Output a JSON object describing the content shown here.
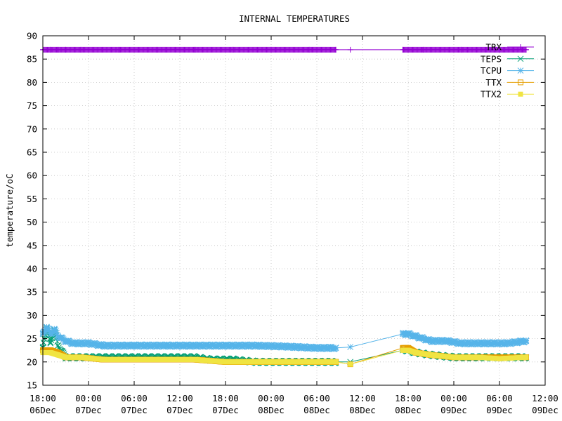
{
  "chart_data": {
    "type": "line",
    "title": "INTERNAL TEMPERATURES",
    "xlabel": "",
    "ylabel": "temperature/oC",
    "ylim": [
      15,
      90
    ],
    "yticks": [
      15,
      20,
      25,
      30,
      35,
      40,
      45,
      50,
      55,
      60,
      65,
      70,
      75,
      80,
      85,
      90
    ],
    "xlim_hours": [
      0,
      66
    ],
    "x_unit": "hours from 18:00 06Dec",
    "xticks": [
      {
        "h": 0,
        "time": "18:00",
        "date": "06Dec"
      },
      {
        "h": 6,
        "time": "00:00",
        "date": "07Dec"
      },
      {
        "h": 12,
        "time": "06:00",
        "date": "07Dec"
      },
      {
        "h": 18,
        "time": "12:00",
        "date": "07Dec"
      },
      {
        "h": 24,
        "time": "18:00",
        "date": "07Dec"
      },
      {
        "h": 30,
        "time": "00:00",
        "date": "08Dec"
      },
      {
        "h": 36,
        "time": "06:00",
        "date": "08Dec"
      },
      {
        "h": 42,
        "time": "12:00",
        "date": "08Dec"
      },
      {
        "h": 48,
        "time": "18:00",
        "date": "08Dec"
      },
      {
        "h": 54,
        "time": "00:00",
        "date": "09Dec"
      },
      {
        "h": 60,
        "time": "06:00",
        "date": "09Dec"
      },
      {
        "h": 66,
        "time": "12:00",
        "date": "09Dec"
      }
    ],
    "grid": true,
    "legend_position": "top-right",
    "series": [
      {
        "name": "TRX",
        "color": "#9400d3",
        "marker": "plus",
        "x": [
          0,
          1,
          2,
          3,
          5,
          10,
          15,
          20,
          25,
          30,
          35,
          38.5,
          40.4,
          47.3,
          48,
          50,
          55,
          60,
          63.5
        ],
        "y": [
          87,
          87,
          87,
          87,
          87,
          87,
          87,
          87,
          87,
          87,
          87,
          87,
          87,
          87,
          87,
          87,
          87,
          87,
          87
        ],
        "dense": [
          [
            0,
            38.5
          ],
          [
            47.3,
            63.5
          ]
        ]
      },
      {
        "name": "TEPS",
        "color": "#009e73",
        "marker": "x",
        "x": [
          0,
          0.5,
          1,
          1.5,
          2,
          3,
          5,
          8,
          12,
          16,
          20,
          22,
          25,
          28,
          32,
          36,
          38.5,
          40.4,
          47.3,
          48,
          49,
          51,
          54,
          57,
          60,
          63.5
        ],
        "y": [
          23,
          27.5,
          24,
          27,
          23.5,
          21,
          21,
          21,
          21,
          21,
          21,
          20.5,
          20.5,
          20,
          20,
          20,
          20,
          20,
          22.5,
          22.5,
          22,
          21.5,
          21,
          21,
          21,
          21
        ],
        "dense": [
          [
            0,
            38.5
          ],
          [
            47.3,
            63.5
          ]
        ]
      },
      {
        "name": "TCPU",
        "color": "#56b4e9",
        "marker": "star",
        "x": [
          0,
          0.5,
          1,
          1.5,
          2,
          3,
          4,
          6,
          8,
          12,
          16,
          20,
          24,
          28,
          32,
          36,
          38.5,
          40.4,
          47.3,
          48,
          49,
          50,
          51,
          53,
          55,
          58,
          61,
          63.5
        ],
        "y": [
          26,
          27.5,
          26,
          27,
          25.5,
          24.5,
          24,
          24,
          23.5,
          23.5,
          23.5,
          23.5,
          23.5,
          23.5,
          23.3,
          23,
          23,
          23.2,
          26,
          26,
          25.5,
          25,
          24.5,
          24.5,
          24,
          24,
          24,
          24.5
        ],
        "dense": [
          [
            0,
            38.5
          ],
          [
            47.3,
            63.5
          ]
        ]
      },
      {
        "name": "TTX",
        "color": "#e69f00",
        "marker": "square-open",
        "x": [
          0,
          1,
          2,
          3,
          5,
          8,
          12,
          16,
          20,
          24,
          28,
          32,
          36,
          38.5,
          40.4,
          47.3,
          48,
          49,
          51,
          54,
          57,
          60,
          63.5
        ],
        "y": [
          22.5,
          22.5,
          22,
          21,
          21,
          20.5,
          20.5,
          20.5,
          20.5,
          20,
          20,
          20,
          20,
          20,
          19.5,
          23,
          23,
          22,
          21.5,
          21,
          21,
          21,
          21
        ],
        "dense": [
          [
            0,
            38.5
          ],
          [
            47.3,
            63.5
          ]
        ]
      },
      {
        "name": "TTX2",
        "color": "#f0e442",
        "marker": "square-filled",
        "x": [
          0,
          1,
          2,
          3,
          5,
          8,
          12,
          16,
          20,
          24,
          28,
          32,
          36,
          38.5,
          40.4,
          47.3,
          48,
          49,
          51,
          54,
          57,
          60,
          63.5
        ],
        "y": [
          22,
          22,
          21.5,
          21,
          21,
          20.5,
          20.5,
          20.5,
          20.5,
          20,
          20,
          20,
          20,
          20,
          19.5,
          22.5,
          22.5,
          22,
          21.5,
          21,
          21,
          20.7,
          21
        ],
        "dense": [
          [
            0,
            38.5
          ],
          [
            47.3,
            63.5
          ]
        ]
      }
    ]
  }
}
